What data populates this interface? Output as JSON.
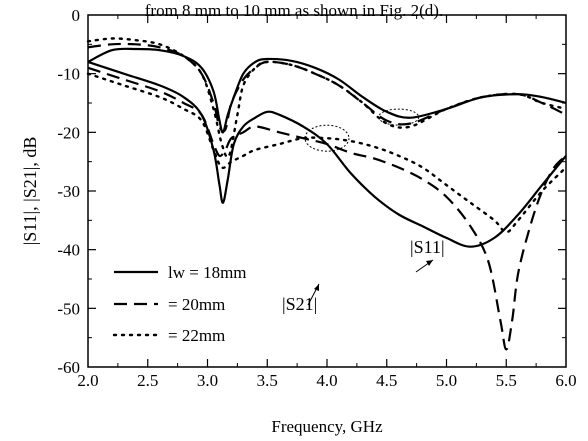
{
  "caption": "from 8 mm to 10 mm as shown in Fig. 2(d).",
  "chart_data": {
    "type": "line",
    "xlabel": "Frequency, GHz",
    "ylabel": "|S11|, |S21|, dB",
    "xlim": [
      2.0,
      6.0
    ],
    "ylim": [
      -60,
      0
    ],
    "xticks": [
      "2.0",
      "2.5",
      "3.0",
      "3.5",
      "4.0",
      "4.5",
      "5.0",
      "5.5",
      "6.0"
    ],
    "yticks": [
      "0",
      "-10",
      "-20",
      "-30",
      "-40",
      "-50",
      "-60"
    ],
    "grid": false,
    "legend_position": "bottom-left",
    "legend": [
      {
        "label": "lw = 18mm",
        "style": "solid"
      },
      {
        "label": "= 20mm",
        "style": "dashed"
      },
      {
        "label": "= 22mm",
        "style": "dotted"
      }
    ],
    "annotations": [
      {
        "text": "|S11|",
        "points_to": "S11 curves near 4.6 GHz"
      },
      {
        "text": "|S21|",
        "points_to": "S21 curves near 4.0 GHz"
      }
    ],
    "series": [
      {
        "name": "|S11| lw = 18mm",
        "style": "solid",
        "x": [
          2.0,
          2.2,
          2.4,
          2.6,
          2.8,
          2.95,
          3.05,
          3.1,
          3.13,
          3.17,
          3.22,
          3.3,
          3.4,
          3.5,
          3.7,
          3.9,
          4.1,
          4.3,
          4.5,
          4.7,
          5.0,
          5.3,
          5.6,
          5.8,
          6.0
        ],
        "y": [
          -8,
          -6,
          -5.8,
          -6,
          -7,
          -9,
          -13,
          -18,
          -20,
          -17,
          -14,
          -10,
          -8,
          -7.5,
          -7.8,
          -9,
          -11,
          -14,
          -16.5,
          -17.5,
          -16,
          -14,
          -13.5,
          -14,
          -15
        ]
      },
      {
        "name": "|S11| = 20mm",
        "style": "dashed",
        "x": [
          2.0,
          2.2,
          2.4,
          2.6,
          2.8,
          2.95,
          3.05,
          3.1,
          3.15,
          3.2,
          3.3,
          3.4,
          3.5,
          3.7,
          3.9,
          4.1,
          4.3,
          4.5,
          4.7,
          5.0,
          5.3,
          5.6,
          5.8,
          6.0
        ],
        "y": [
          -5.5,
          -5,
          -5,
          -5.5,
          -7,
          -10,
          -15,
          -19,
          -19.5,
          -15,
          -11,
          -9,
          -8,
          -8.5,
          -10,
          -12,
          -15,
          -18,
          -18.5,
          -16,
          -14,
          -13.5,
          -15,
          -17
        ]
      },
      {
        "name": "|S11| = 22mm",
        "style": "dotted",
        "x": [
          2.0,
          2.2,
          2.4,
          2.6,
          2.8,
          2.95,
          3.05,
          3.12,
          3.18,
          3.25,
          3.3,
          3.4,
          3.5,
          3.7,
          3.9,
          4.1,
          4.3,
          4.5,
          4.7,
          5.0,
          5.3,
          5.6,
          5.8,
          6.0
        ],
        "y": [
          -4.5,
          -4,
          -4.3,
          -5,
          -7,
          -10,
          -16,
          -22,
          -24,
          -17,
          -12,
          -9,
          -8,
          -8.5,
          -10,
          -12,
          -15,
          -18.5,
          -19,
          -16,
          -14,
          -13.5,
          -15,
          -16
        ]
      },
      {
        "name": "|S21| lw = 18mm",
        "style": "solid",
        "x": [
          2.0,
          2.3,
          2.6,
          2.8,
          2.95,
          3.05,
          3.1,
          3.13,
          3.17,
          3.22,
          3.3,
          3.4,
          3.5,
          3.6,
          3.8,
          4.0,
          4.2,
          4.4,
          4.6,
          4.8,
          5.0,
          5.2,
          5.4,
          5.6,
          5.8,
          6.0
        ],
        "y": [
          -8,
          -10,
          -12,
          -14,
          -17,
          -23,
          -29,
          -32,
          -28,
          -22,
          -19,
          -17.5,
          -16.5,
          -17,
          -19,
          -22,
          -27,
          -31,
          -34,
          -36,
          -38,
          -39.5,
          -38,
          -34,
          -29,
          -24
        ]
      },
      {
        "name": "|S21| = 20mm",
        "style": "dashed",
        "x": [
          2.0,
          2.3,
          2.6,
          2.8,
          2.95,
          3.05,
          3.1,
          3.15,
          3.2,
          3.3,
          3.4,
          3.6,
          3.8,
          4.0,
          4.2,
          4.4,
          4.6,
          4.8,
          5.0,
          5.2,
          5.35,
          5.45,
          5.5,
          5.55,
          5.6,
          5.7,
          5.8,
          5.9,
          6.0
        ],
        "y": [
          -9,
          -11,
          -13,
          -15,
          -17,
          -22,
          -24,
          -23,
          -21,
          -20,
          -19,
          -20,
          -21,
          -22,
          -23.5,
          -24.5,
          -26,
          -28,
          -31,
          -36,
          -42,
          -52,
          -57,
          -52,
          -44,
          -36,
          -30,
          -26,
          -24
        ]
      },
      {
        "name": "|S21| = 22mm",
        "style": "dotted",
        "x": [
          2.0,
          2.3,
          2.6,
          2.8,
          2.95,
          3.05,
          3.12,
          3.2,
          3.3,
          3.4,
          3.6,
          3.8,
          4.0,
          4.2,
          4.4,
          4.6,
          4.8,
          5.0,
          5.2,
          5.4,
          5.5,
          5.6,
          5.8,
          6.0
        ],
        "y": [
          -10,
          -12,
          -14,
          -16,
          -18,
          -23,
          -26,
          -25,
          -24,
          -23,
          -22,
          -21,
          -21,
          -21.5,
          -22.5,
          -24,
          -26,
          -29,
          -32,
          -35,
          -37,
          -35,
          -30,
          -26
        ]
      }
    ]
  }
}
